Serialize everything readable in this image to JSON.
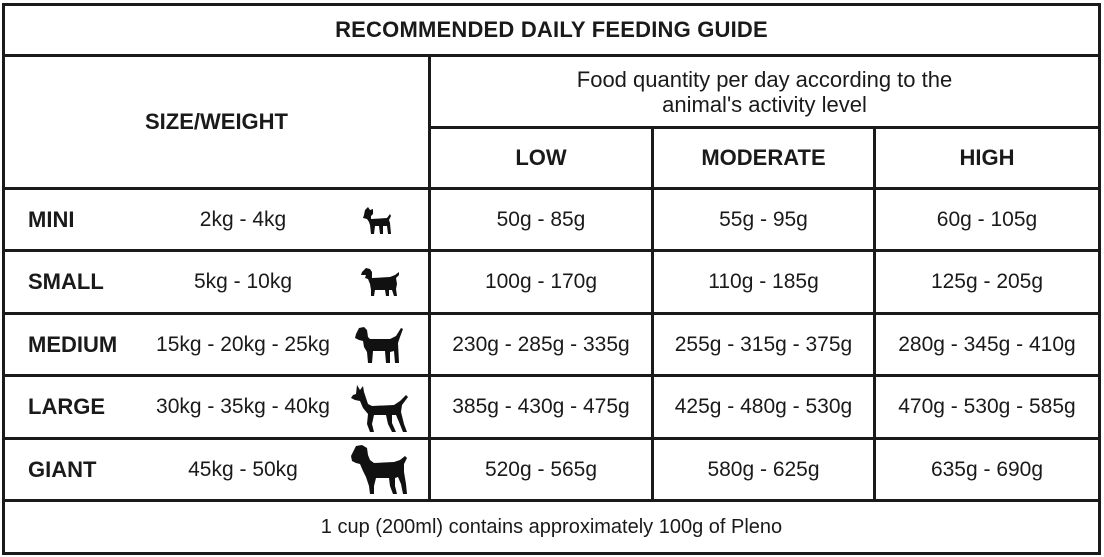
{
  "title": "RECOMMENDED DAILY FEEDING GUIDE",
  "header": {
    "size_weight": "SIZE/WEIGHT",
    "quantity_line1": "Food quantity per day according to the",
    "quantity_line2": "animal's activity level",
    "levels": [
      "LOW",
      "MODERATE",
      "HIGH"
    ]
  },
  "rows": [
    {
      "size": "MINI",
      "weight": "2kg - 4kg",
      "icon": "small-terrier-dog-icon",
      "low": "50g - 85g",
      "moderate": "55g - 95g",
      "high": "60g - 105g"
    },
    {
      "size": "SMALL",
      "weight": "5kg - 10kg",
      "icon": "dachshund-dog-icon",
      "low": "100g - 170g",
      "moderate": "110g - 185g",
      "high": "125g - 205g"
    },
    {
      "size": "MEDIUM",
      "weight": "15kg - 20kg - 25kg",
      "icon": "medium-dog-icon",
      "low": "230g - 285g - 335g",
      "moderate": "255g - 315g - 375g",
      "high": "280g - 345g - 410g"
    },
    {
      "size": "LARGE",
      "weight": "30kg - 35kg - 40kg",
      "icon": "doberman-dog-icon",
      "low": "385g - 430g - 475g",
      "moderate": "425g - 480g - 530g",
      "high": "470g - 530g - 585g"
    },
    {
      "size": "GIANT",
      "weight": "45kg - 50kg",
      "icon": "mastiff-dog-icon",
      "low": "520g - 565g",
      "moderate": "580g - 625g",
      "high": "635g - 690g"
    }
  ],
  "footer": "1 cup (200ml) contains approximately 100g of Pleno",
  "colors": {
    "line": "#1a1a1a",
    "background": "#ffffff"
  }
}
